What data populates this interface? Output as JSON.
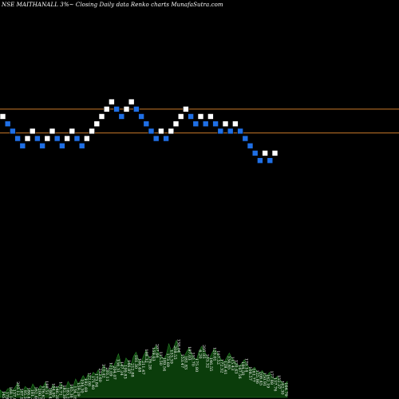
{
  "chart_data": {
    "type": "renko",
    "title": "NSE MAITHANALL 3%~ Closing Daily data Renko charts MunafaSutra.com",
    "reference_lines": [
      1120,
      1146
    ],
    "ylim": [
      830,
      1265
    ],
    "bricks": [
      {
        "level": 1138,
        "dir": "up"
      },
      {
        "level": 1130,
        "dir": "down"
      },
      {
        "level": 1122,
        "dir": "down"
      },
      {
        "level": 1114,
        "dir": "down"
      },
      {
        "level": 1106,
        "dir": "down"
      },
      {
        "level": 1114,
        "dir": "up"
      },
      {
        "level": 1122,
        "dir": "up"
      },
      {
        "level": 1114,
        "dir": "down"
      },
      {
        "level": 1106,
        "dir": "down"
      },
      {
        "level": 1114,
        "dir": "up"
      },
      {
        "level": 1122,
        "dir": "up"
      },
      {
        "level": 1114,
        "dir": "down"
      },
      {
        "level": 1106,
        "dir": "down"
      },
      {
        "level": 1114,
        "dir": "up"
      },
      {
        "level": 1122,
        "dir": "up"
      },
      {
        "level": 1114,
        "dir": "down"
      },
      {
        "level": 1106,
        "dir": "down"
      },
      {
        "level": 1114,
        "dir": "up"
      },
      {
        "level": 1122,
        "dir": "up"
      },
      {
        "level": 1130,
        "dir": "up"
      },
      {
        "level": 1138,
        "dir": "up"
      },
      {
        "level": 1146,
        "dir": "up"
      },
      {
        "level": 1154,
        "dir": "up"
      },
      {
        "level": 1146,
        "dir": "down"
      },
      {
        "level": 1138,
        "dir": "down"
      },
      {
        "level": 1146,
        "dir": "up"
      },
      {
        "level": 1154,
        "dir": "up"
      },
      {
        "level": 1146,
        "dir": "down"
      },
      {
        "level": 1138,
        "dir": "down"
      },
      {
        "level": 1130,
        "dir": "down"
      },
      {
        "level": 1122,
        "dir": "down"
      },
      {
        "level": 1114,
        "dir": "down"
      },
      {
        "level": 1122,
        "dir": "up"
      },
      {
        "level": 1114,
        "dir": "down"
      },
      {
        "level": 1122,
        "dir": "up"
      },
      {
        "level": 1130,
        "dir": "up"
      },
      {
        "level": 1138,
        "dir": "up"
      },
      {
        "level": 1146,
        "dir": "up"
      },
      {
        "level": 1138,
        "dir": "down"
      },
      {
        "level": 1130,
        "dir": "down"
      },
      {
        "level": 1138,
        "dir": "up"
      },
      {
        "level": 1130,
        "dir": "down"
      },
      {
        "level": 1138,
        "dir": "up"
      },
      {
        "level": 1130,
        "dir": "down"
      },
      {
        "level": 1122,
        "dir": "down"
      },
      {
        "level": 1130,
        "dir": "up"
      },
      {
        "level": 1122,
        "dir": "down"
      },
      {
        "level": 1130,
        "dir": "up"
      },
      {
        "level": 1122,
        "dir": "down"
      },
      {
        "level": 1114,
        "dir": "down"
      },
      {
        "level": 1106,
        "dir": "down"
      },
      {
        "level": 1098,
        "dir": "down"
      },
      {
        "level": 1090,
        "dir": "down"
      },
      {
        "level": 1098,
        "dir": "up"
      },
      {
        "level": 1090,
        "dir": "down"
      },
      {
        "level": 1098,
        "dir": "up"
      }
    ],
    "volume": [
      9,
      6,
      5,
      10,
      11,
      8,
      12,
      17,
      9,
      7,
      13,
      10,
      8,
      16,
      11,
      9,
      14,
      12,
      18,
      10,
      8,
      15,
      12,
      11,
      17,
      13,
      10,
      19,
      14,
      12,
      22,
      16,
      20,
      26,
      21,
      28,
      24,
      30,
      27,
      33,
      25,
      38,
      34,
      30,
      40,
      36,
      44,
      52,
      41,
      37,
      47,
      43,
      39,
      49,
      54,
      45,
      42,
      50,
      56,
      48,
      44,
      58,
      62,
      53,
      49,
      46,
      51,
      64,
      55,
      60,
      68,
      57,
      50,
      48,
      54,
      59,
      52,
      47,
      45,
      55,
      61,
      56,
      50,
      46,
      52,
      58,
      54,
      49,
      44,
      42,
      48,
      53,
      47,
      43,
      40,
      37,
      41,
      45,
      39,
      35,
      33,
      36,
      31,
      29,
      32,
      28,
      26,
      30,
      24,
      22,
      25,
      21,
      18,
      16,
      19
    ],
    "volume_labels": [
      "145.61",
      "178.39",
      "168.14",
      "137.80",
      "203.12",
      "187.95",
      "95.35",
      "186.47",
      "181.23",
      "162.40",
      "200.50",
      "176.62",
      "188.51",
      "198.48",
      "194.95",
      "146.28",
      "178.71",
      "182.39",
      "183.29",
      "165.36",
      "134.16",
      "159.29",
      "194.30",
      "192.69",
      "122.00",
      "171.40",
      "173.84",
      "212.60",
      "210.42",
      "203.11",
      "121.09",
      "204.07",
      "156.31",
      "147.24",
      "199.83",
      "146.87",
      "212.88",
      "181.30",
      "166.48",
      "211.47",
      "198.32",
      "176.28",
      "159.63",
      "207.46",
      "115.50",
      "189.54",
      "173.69",
      "153.39",
      "208.55",
      "138.04",
      "153.47",
      "181.83",
      "197.03",
      "152.70",
      "175.80",
      "6.20",
      "205.05",
      "103.32",
      "146.55",
      "120.01",
      "167.52",
      "172.32",
      "128.41",
      "134.85",
      "115.43",
      "120.43",
      "167.56",
      "184.50",
      "175.14",
      "108.57",
      "161.77",
      "125.86",
      "208.45",
      "150.91",
      "162.19",
      "177.88",
      "157.76",
      "152.37",
      "162.30",
      "164.79"
    ],
    "colors": {
      "background": "#000000",
      "up_brick": "#ffffff",
      "down_brick": "#1f6fe5",
      "reference_line": "#c87a2a",
      "volume_fill": "#0b3d0b",
      "volume_edge": "#2a8a2a",
      "text": "#ffffff"
    }
  }
}
